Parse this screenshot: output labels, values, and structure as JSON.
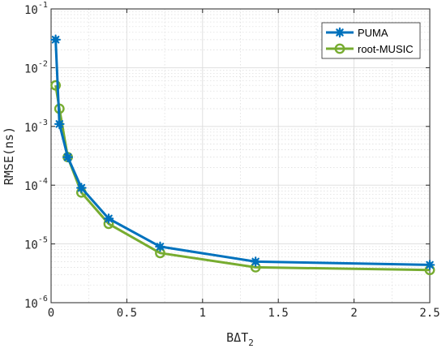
{
  "chart_data": {
    "type": "line",
    "title": "",
    "xlabel": "BΔT",
    "xlabel_sub": "2",
    "ylabel": "RMSE(ns)",
    "x_scale": "linear",
    "y_scale": "log",
    "xlim": [
      0,
      2.5
    ],
    "ylim": [
      1e-06,
      0.1
    ],
    "x_ticks": [
      0,
      0.5,
      1,
      1.5,
      2,
      2.5
    ],
    "x_tick_labels": [
      "0",
      "0.5",
      "1",
      "1.5",
      "2",
      "2.5"
    ],
    "y_ticks": [
      1e-06,
      1e-05,
      0.0001,
      0.001,
      0.01,
      0.1
    ],
    "y_tick_bases": [
      "10",
      "10",
      "10",
      "10",
      "10",
      "10"
    ],
    "y_tick_exponents": [
      "-6",
      "-5",
      "-4",
      "-3",
      "-2",
      "-1"
    ],
    "grid": "on (major and minor)",
    "legend_position": "top-right",
    "series": [
      {
        "name": "PUMA",
        "color": "#0072BD",
        "marker": "asterisk",
        "x": [
          0.03,
          0.055,
          0.11,
          0.2,
          0.38,
          0.72,
          1.35,
          2.5
        ],
        "y": [
          0.03,
          0.0011,
          0.0003,
          9e-05,
          2.7e-05,
          9e-06,
          5e-06,
          4.4e-06
        ]
      },
      {
        "name": "root-MUSIC",
        "color": "#77AC30",
        "marker": "circle",
        "x": [
          0.03,
          0.055,
          0.11,
          0.2,
          0.38,
          0.72,
          1.35,
          2.5
        ],
        "y": [
          0.005,
          0.002,
          0.0003,
          7.5e-05,
          2.2e-05,
          7e-06,
          4e-06,
          3.6e-06
        ]
      }
    ]
  }
}
